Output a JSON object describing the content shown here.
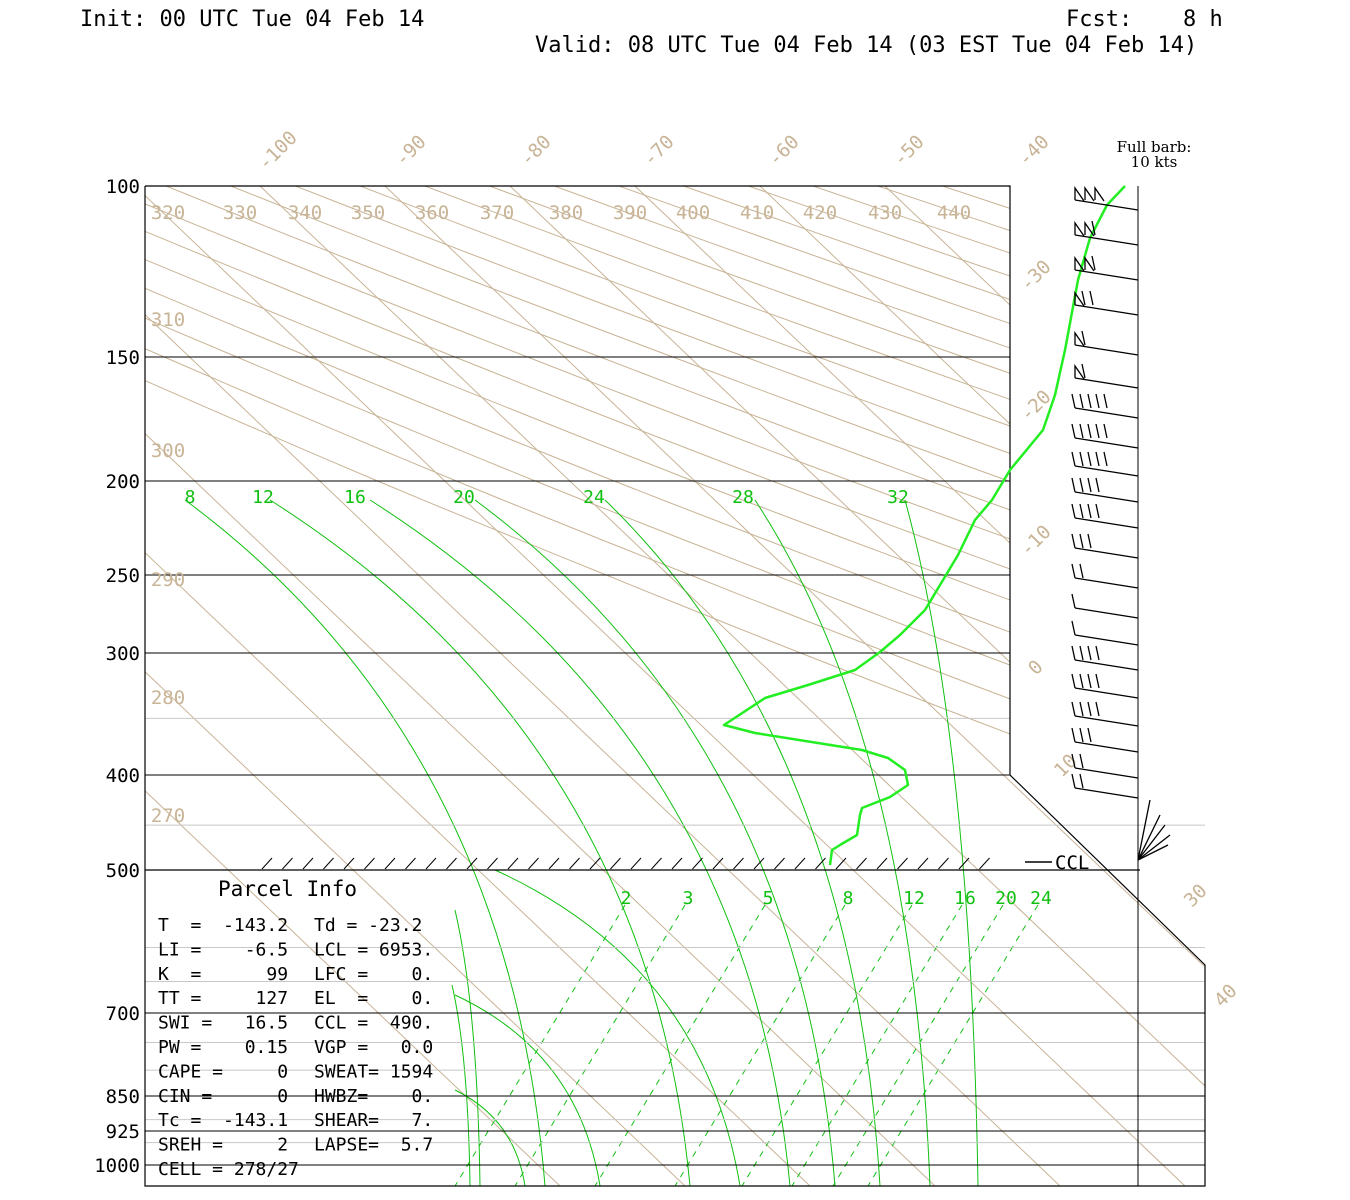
{
  "header": {
    "init": "Init: 00 UTC Tue 04 Feb 14",
    "fcst_label": "Fcst:",
    "fcst_value": "8 h",
    "valid": "Valid: 08 UTC Tue 04 Feb 14 (03 EST Tue 04 Feb 14)"
  },
  "barb_legend": {
    "line1": "Full barb:",
    "line2": "10 kts"
  },
  "colors": {
    "grid": "#c8b496",
    "sounding": "#22ee22",
    "adiabat": "#10c010",
    "axes": "#000000"
  },
  "chart_data": {
    "type": "skew-t",
    "pressure_levels": [
      {
        "p": 100,
        "label": "100",
        "line": true
      },
      {
        "p": 150,
        "label": "150",
        "line": true
      },
      {
        "p": 200,
        "label": "200",
        "line": true
      },
      {
        "p": 250,
        "label": "250",
        "line": true
      },
      {
        "p": 300,
        "label": "300",
        "line": true
      },
      {
        "p": 400,
        "label": "400",
        "line": true
      },
      {
        "p": 500,
        "label": "500",
        "line": true
      },
      {
        "p": 700,
        "label": "700",
        "line": true
      },
      {
        "p": 850,
        "label": "850",
        "line": true
      },
      {
        "p": 925,
        "label": "925",
        "line": true
      },
      {
        "p": 1000,
        "label": "1000",
        "line": true
      }
    ],
    "isotherm_labels": [
      "-100",
      "-90",
      "-80",
      "-70",
      "-60",
      "-50",
      "-40",
      "-30",
      "-20",
      "-10",
      "0",
      "10",
      "30",
      "40"
    ],
    "theta_labels": [
      "320",
      "330",
      "340",
      "350",
      "360",
      "370",
      "380",
      "390",
      "400",
      "410",
      "420",
      "430",
      "440",
      "310",
      "300",
      "290",
      "280",
      "270"
    ],
    "moist_adiabat_labels": [
      "8",
      "12",
      "16",
      "20",
      "24",
      "28",
      "32"
    ],
    "mixing_ratio_labels": [
      "2",
      "3",
      "5",
      "8",
      "12",
      "16",
      "20",
      "24"
    ],
    "ccl_label": "CCL",
    "sounding": [
      {
        "p": 100,
        "t": -41
      },
      {
        "p": 115,
        "t": -38
      },
      {
        "p": 140,
        "t": -34
      },
      {
        "p": 170,
        "t": -26
      },
      {
        "p": 185,
        "t": -25
      },
      {
        "p": 200,
        "t": -24
      },
      {
        "p": 215,
        "t": -22
      },
      {
        "p": 245,
        "t": -24
      },
      {
        "p": 270,
        "t": -30
      },
      {
        "p": 300,
        "t": -41
      },
      {
        "p": 315,
        "t": -52
      },
      {
        "p": 335,
        "t": -67
      },
      {
        "p": 350,
        "t": -82
      },
      {
        "p": 380,
        "t": -68
      },
      {
        "p": 400,
        "t": -64
      },
      {
        "p": 410,
        "t": -66
      },
      {
        "p": 430,
        "t": -80
      },
      {
        "p": 460,
        "t": -88
      },
      {
        "p": 480,
        "t": -100
      },
      {
        "p": 500,
        "t": -105
      }
    ]
  },
  "parcel_info": {
    "title": "Parcel Info",
    "rows": [
      {
        "left": "T  =  -143.2",
        "right": "Td = -23.2"
      },
      {
        "left": "LI =    -6.5",
        "right": "LCL = 6953."
      },
      {
        "left": "K  =      99",
        "right": "LFC =    0."
      },
      {
        "left": "TT =     127",
        "right": "EL  =    0."
      },
      {
        "left": "SWI =   16.5",
        "right": "CCL =  490."
      },
      {
        "left": "PW =    0.15",
        "right": "VGP =   0.0"
      },
      {
        "left": "CAPE =     0",
        "right": "SWEAT= 1594"
      },
      {
        "left": "CIN =      0",
        "right": "HWBZ=    0."
      },
      {
        "left": "Tc =  -143.1",
        "right": "SHEAR=   7."
      },
      {
        "left": "SREH =     2",
        "right": "LAPSE=  5.7"
      },
      {
        "left": "CELL = 278/27",
        "right": ""
      }
    ]
  }
}
